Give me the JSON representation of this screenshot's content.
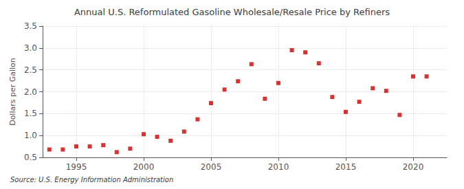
{
  "chart_data": {
    "type": "scatter",
    "title": "Annual U.S. Reformulated Gasoline Wholesale/Resale Price by Refiners",
    "ylabel": "Dollars per Gallon",
    "annotations": [
      "Source: U.S. Energy Information Administration"
    ],
    "color": "#cc0000",
    "marker": "square",
    "x": [
      1993,
      1994,
      1995,
      1996,
      1997,
      1998,
      1999,
      2000,
      2001,
      2002,
      2003,
      2004,
      2005,
      2006,
      2007,
      2008,
      2009,
      2010,
      2011,
      2012,
      2013,
      2014,
      2015,
      2016,
      2017,
      2018,
      2019,
      2020,
      2021
    ],
    "values": [
      0.68,
      0.68,
      0.75,
      0.75,
      0.78,
      0.62,
      0.7,
      1.03,
      0.97,
      0.88,
      1.09,
      1.37,
      1.74,
      2.05,
      2.24,
      2.63,
      1.84,
      2.2,
      2.95,
      2.9,
      2.65,
      1.88,
      1.54,
      1.77,
      2.08,
      2.02,
      1.47,
      2.35,
      2.35
    ],
    "xlim": [
      1992.5,
      2022.5
    ],
    "xticks": [
      1995,
      2000,
      2005,
      2010,
      2015,
      2020
    ],
    "ylim": [
      0.5,
      3.5
    ],
    "yticks": [
      {
        "value": 0.5,
        "label": "0.5"
      },
      {
        "value": 1.0,
        "label": "1.0"
      },
      {
        "value": 1.5,
        "label": "1.5"
      },
      {
        "value": 2.0,
        "label": "2.0"
      },
      {
        "value": 2.5,
        "label": "2.5"
      },
      {
        "value": 3.0,
        "label": "3.0"
      },
      {
        "value": 3.5,
        "label": "3.5"
      }
    ],
    "grid": true
  }
}
